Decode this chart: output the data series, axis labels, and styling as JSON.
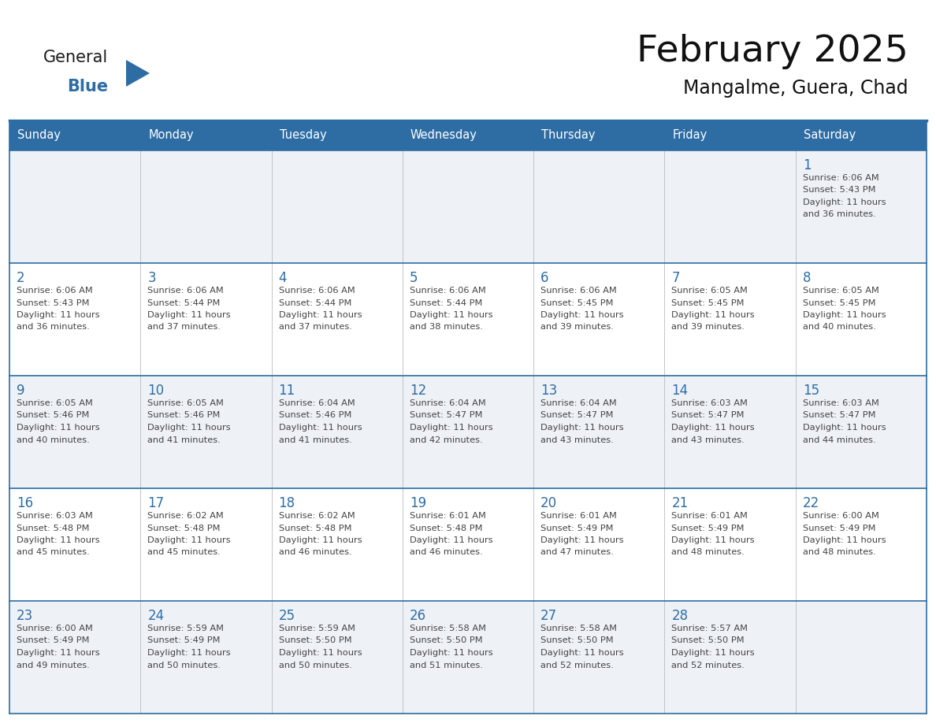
{
  "title": "February 2025",
  "subtitle": "Mangalme, Guera, Chad",
  "header_bg": "#2E6DA4",
  "header_text_color": "#FFFFFF",
  "cell_bg_light": "#EEF2F7",
  "cell_bg_white": "#FFFFFF",
  "day_number_color": "#2E6DA4",
  "text_color": "#444444",
  "line_color": "#2E6DA4",
  "days_of_week": [
    "Sunday",
    "Monday",
    "Tuesday",
    "Wednesday",
    "Thursday",
    "Friday",
    "Saturday"
  ],
  "weeks": [
    [
      {
        "day": null,
        "sunrise": null,
        "sunset": null,
        "daylight": null
      },
      {
        "day": null,
        "sunrise": null,
        "sunset": null,
        "daylight": null
      },
      {
        "day": null,
        "sunrise": null,
        "sunset": null,
        "daylight": null
      },
      {
        "day": null,
        "sunrise": null,
        "sunset": null,
        "daylight": null
      },
      {
        "day": null,
        "sunrise": null,
        "sunset": null,
        "daylight": null
      },
      {
        "day": null,
        "sunrise": null,
        "sunset": null,
        "daylight": null
      },
      {
        "day": 1,
        "sunrise": "6:06 AM",
        "sunset": "5:43 PM",
        "daylight": "11 hours and 36 minutes."
      }
    ],
    [
      {
        "day": 2,
        "sunrise": "6:06 AM",
        "sunset": "5:43 PM",
        "daylight": "11 hours and 36 minutes."
      },
      {
        "day": 3,
        "sunrise": "6:06 AM",
        "sunset": "5:44 PM",
        "daylight": "11 hours and 37 minutes."
      },
      {
        "day": 4,
        "sunrise": "6:06 AM",
        "sunset": "5:44 PM",
        "daylight": "11 hours and 37 minutes."
      },
      {
        "day": 5,
        "sunrise": "6:06 AM",
        "sunset": "5:44 PM",
        "daylight": "11 hours and 38 minutes."
      },
      {
        "day": 6,
        "sunrise": "6:06 AM",
        "sunset": "5:45 PM",
        "daylight": "11 hours and 39 minutes."
      },
      {
        "day": 7,
        "sunrise": "6:05 AM",
        "sunset": "5:45 PM",
        "daylight": "11 hours and 39 minutes."
      },
      {
        "day": 8,
        "sunrise": "6:05 AM",
        "sunset": "5:45 PM",
        "daylight": "11 hours and 40 minutes."
      }
    ],
    [
      {
        "day": 9,
        "sunrise": "6:05 AM",
        "sunset": "5:46 PM",
        "daylight": "11 hours and 40 minutes."
      },
      {
        "day": 10,
        "sunrise": "6:05 AM",
        "sunset": "5:46 PM",
        "daylight": "11 hours and 41 minutes."
      },
      {
        "day": 11,
        "sunrise": "6:04 AM",
        "sunset": "5:46 PM",
        "daylight": "11 hours and 41 minutes."
      },
      {
        "day": 12,
        "sunrise": "6:04 AM",
        "sunset": "5:47 PM",
        "daylight": "11 hours and 42 minutes."
      },
      {
        "day": 13,
        "sunrise": "6:04 AM",
        "sunset": "5:47 PM",
        "daylight": "11 hours and 43 minutes."
      },
      {
        "day": 14,
        "sunrise": "6:03 AM",
        "sunset": "5:47 PM",
        "daylight": "11 hours and 43 minutes."
      },
      {
        "day": 15,
        "sunrise": "6:03 AM",
        "sunset": "5:47 PM",
        "daylight": "11 hours and 44 minutes."
      }
    ],
    [
      {
        "day": 16,
        "sunrise": "6:03 AM",
        "sunset": "5:48 PM",
        "daylight": "11 hours and 45 minutes."
      },
      {
        "day": 17,
        "sunrise": "6:02 AM",
        "sunset": "5:48 PM",
        "daylight": "11 hours and 45 minutes."
      },
      {
        "day": 18,
        "sunrise": "6:02 AM",
        "sunset": "5:48 PM",
        "daylight": "11 hours and 46 minutes."
      },
      {
        "day": 19,
        "sunrise": "6:01 AM",
        "sunset": "5:48 PM",
        "daylight": "11 hours and 46 minutes."
      },
      {
        "day": 20,
        "sunrise": "6:01 AM",
        "sunset": "5:49 PM",
        "daylight": "11 hours and 47 minutes."
      },
      {
        "day": 21,
        "sunrise": "6:01 AM",
        "sunset": "5:49 PM",
        "daylight": "11 hours and 48 minutes."
      },
      {
        "day": 22,
        "sunrise": "6:00 AM",
        "sunset": "5:49 PM",
        "daylight": "11 hours and 48 minutes."
      }
    ],
    [
      {
        "day": 23,
        "sunrise": "6:00 AM",
        "sunset": "5:49 PM",
        "daylight": "11 hours and 49 minutes."
      },
      {
        "day": 24,
        "sunrise": "5:59 AM",
        "sunset": "5:49 PM",
        "daylight": "11 hours and 50 minutes."
      },
      {
        "day": 25,
        "sunrise": "5:59 AM",
        "sunset": "5:50 PM",
        "daylight": "11 hours and 50 minutes."
      },
      {
        "day": 26,
        "sunrise": "5:58 AM",
        "sunset": "5:50 PM",
        "daylight": "11 hours and 51 minutes."
      },
      {
        "day": 27,
        "sunrise": "5:58 AM",
        "sunset": "5:50 PM",
        "daylight": "11 hours and 52 minutes."
      },
      {
        "day": 28,
        "sunrise": "5:57 AM",
        "sunset": "5:50 PM",
        "daylight": "11 hours and 52 minutes."
      },
      {
        "day": null,
        "sunrise": null,
        "sunset": null,
        "daylight": null
      }
    ]
  ],
  "logo_general_color": "#1a1a1a",
  "logo_blue_color": "#2E6DA4",
  "logo_triangle_color": "#2E6DA4"
}
